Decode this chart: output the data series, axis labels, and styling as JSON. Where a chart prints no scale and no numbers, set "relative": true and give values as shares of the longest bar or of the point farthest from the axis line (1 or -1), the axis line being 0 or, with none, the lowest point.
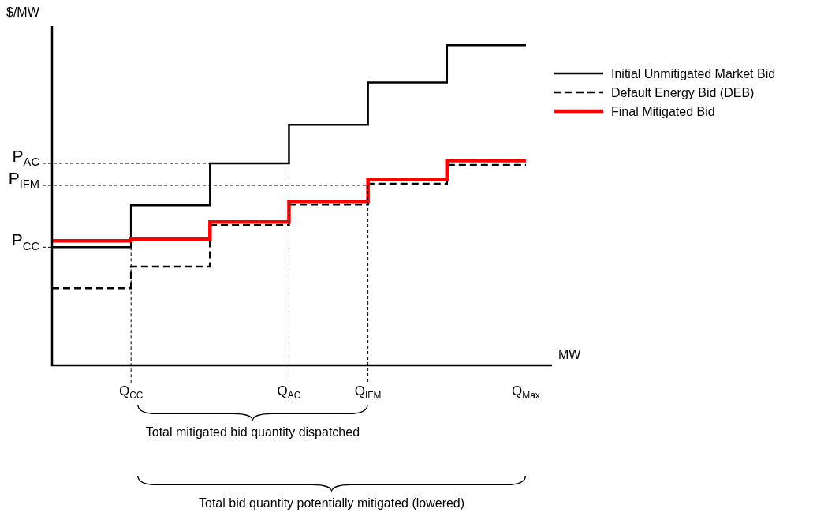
{
  "chart_data": {
    "type": "step",
    "relative": true,
    "xlabel": "MW",
    "ylabel": "$/MW",
    "legend": "top right",
    "categories": [
      null,
      "Q$_{CC}$",
      null,
      "Q$_{AC}$",
      "Q$_{IFM}$",
      null,
      "Q$_{Max}$"
    ],
    "series": [
      {
        "name": "Initial Unmitigated Market Bid",
        "color": "#000000",
        "line_style": "solid",
        "values": [
          0.369,
          0.369,
          0.5,
          0.631,
          0.751,
          0.884,
          1.0
        ]
      },
      {
        "name": "Default Energy Bid (DEB)",
        "color": "#000000",
        "line_style": "dashed",
        "values": [
          0.241,
          0.241,
          0.308,
          0.438,
          0.502,
          0.567,
          0.626
        ]
      },
      {
        "name": "Final Mitigated Bid",
        "color": "#ff0000",
        "line_style": "solid",
        "values": [
          0.389,
          0.389,
          0.394,
          0.448,
          0.512,
          0.581,
          0.64
        ]
      }
    ],
    "ref_lines": [
      {
        "axis": "y",
        "value": 0.631,
        "label": "P$_{AC}$",
        "line_style": "dashed"
      },
      {
        "axis": "y",
        "value": 0.562,
        "label": "P$_{IFM}$",
        "line_style": "dashed"
      },
      {
        "axis": "y",
        "value": 0.369,
        "label": "P$_{CC}$",
        "line_style": "dashed"
      },
      {
        "axis": "x",
        "value": "Q$_{AC}$",
        "line_style": "dashed"
      },
      {
        "axis": "x",
        "value": "Q$_{IFM}$",
        "line_style": "dashed"
      },
      {
        "axis": "x",
        "value": "Q$_{CC}$",
        "line_style": "dashed"
      }
    ],
    "annotations": [
      "Total mitigated bid quantity dispatched",
      "Total bid quantity potentially mitigated (lowered)"
    ]
  }
}
